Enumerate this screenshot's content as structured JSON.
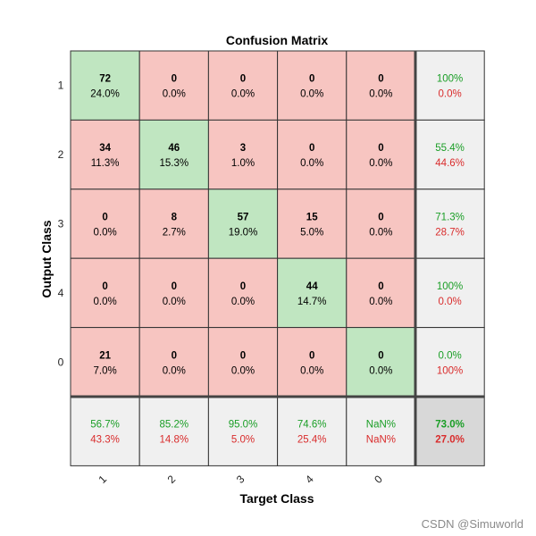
{
  "chart_data": {
    "type": "heatmap",
    "title": "Confusion Matrix",
    "xlabel": "Target Class",
    "ylabel": "Output Class",
    "classes": [
      "1",
      "2",
      "3",
      "4",
      "0"
    ],
    "cells": [
      [
        {
          "count": "72",
          "pct": "24.0%"
        },
        {
          "count": "0",
          "pct": "0.0%"
        },
        {
          "count": "0",
          "pct": "0.0%"
        },
        {
          "count": "0",
          "pct": "0.0%"
        },
        {
          "count": "0",
          "pct": "0.0%"
        }
      ],
      [
        {
          "count": "34",
          "pct": "11.3%"
        },
        {
          "count": "46",
          "pct": "15.3%"
        },
        {
          "count": "3",
          "pct": "1.0%"
        },
        {
          "count": "0",
          "pct": "0.0%"
        },
        {
          "count": "0",
          "pct": "0.0%"
        }
      ],
      [
        {
          "count": "0",
          "pct": "0.0%"
        },
        {
          "count": "8",
          "pct": "2.7%"
        },
        {
          "count": "57",
          "pct": "19.0%"
        },
        {
          "count": "15",
          "pct": "5.0%"
        },
        {
          "count": "0",
          "pct": "0.0%"
        }
      ],
      [
        {
          "count": "0",
          "pct": "0.0%"
        },
        {
          "count": "0",
          "pct": "0.0%"
        },
        {
          "count": "0",
          "pct": "0.0%"
        },
        {
          "count": "44",
          "pct": "14.7%"
        },
        {
          "count": "0",
          "pct": "0.0%"
        }
      ],
      [
        {
          "count": "21",
          "pct": "7.0%"
        },
        {
          "count": "0",
          "pct": "0.0%"
        },
        {
          "count": "0",
          "pct": "0.0%"
        },
        {
          "count": "0",
          "pct": "0.0%"
        },
        {
          "count": "0",
          "pct": "0.0%"
        }
      ]
    ],
    "row_summary": [
      {
        "correct": "100%",
        "wrong": "0.0%"
      },
      {
        "correct": "55.4%",
        "wrong": "44.6%"
      },
      {
        "correct": "71.3%",
        "wrong": "28.7%"
      },
      {
        "correct": "100%",
        "wrong": "0.0%"
      },
      {
        "correct": "0.0%",
        "wrong": "100%"
      }
    ],
    "col_summary": [
      {
        "correct": "56.7%",
        "wrong": "43.3%"
      },
      {
        "correct": "85.2%",
        "wrong": "14.8%"
      },
      {
        "correct": "95.0%",
        "wrong": "5.0%"
      },
      {
        "correct": "74.6%",
        "wrong": "25.4%"
      },
      {
        "correct": "NaN%",
        "wrong": "NaN%"
      }
    ],
    "overall": {
      "correct": "73.0%",
      "wrong": "27.0%"
    },
    "colors": {
      "diagonal": "#c0e6c1",
      "off_diagonal": "#f7c5c1",
      "summary": "#f0f0f0",
      "overall": "#d8d8d8",
      "correct_text": "#1a9e26",
      "wrong_text": "#d92c2c"
    }
  },
  "watermark": "CSDN @Simuworld"
}
